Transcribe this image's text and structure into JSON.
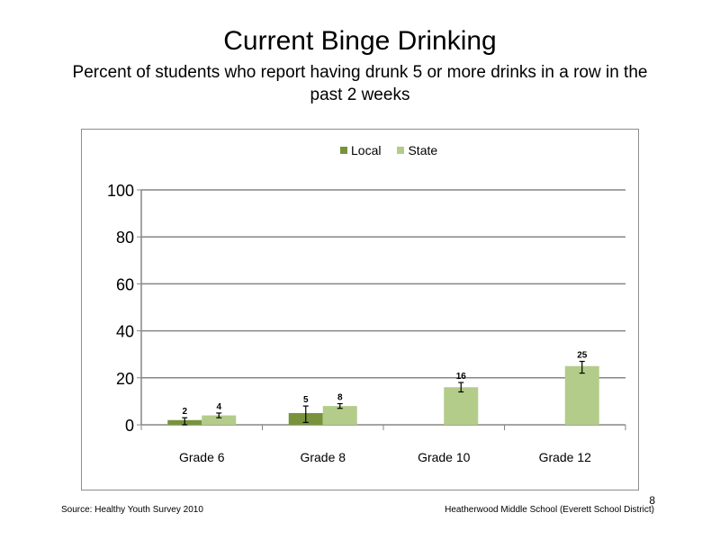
{
  "slide": {
    "title": "Current Binge Drinking",
    "subtitle": "Percent of students who report having drunk 5 or more drinks in a row in the past 2 weeks",
    "source": "Source: Healthy Youth Survey 2010",
    "school": "Heatherwood Middle School (Everett School District)",
    "page_number": "8"
  },
  "chart_data": {
    "type": "bar",
    "categories": [
      "Grade 6",
      "Grade 8",
      "Grade 10",
      "Grade 12"
    ],
    "series": [
      {
        "name": "Local",
        "color": "#77933c",
        "values": [
          2,
          5,
          null,
          null
        ],
        "error": [
          [
            0,
            3
          ],
          [
            1,
            8
          ],
          null,
          null
        ]
      },
      {
        "name": "State",
        "color": "#b3cc8a",
        "values": [
          4,
          8,
          16,
          25
        ],
        "error": [
          [
            3,
            5
          ],
          [
            7,
            9
          ],
          [
            14,
            18
          ],
          [
            22,
            27
          ]
        ]
      }
    ],
    "data_labels": [
      [
        "2",
        "5",
        "",
        ""
      ],
      [
        "4",
        "8",
        "16",
        "25"
      ]
    ],
    "yticks": [
      "0",
      "20",
      "40",
      "60",
      "80",
      "100"
    ],
    "ylim": [
      0,
      100
    ],
    "grid": true,
    "legend_position": "top-center"
  }
}
